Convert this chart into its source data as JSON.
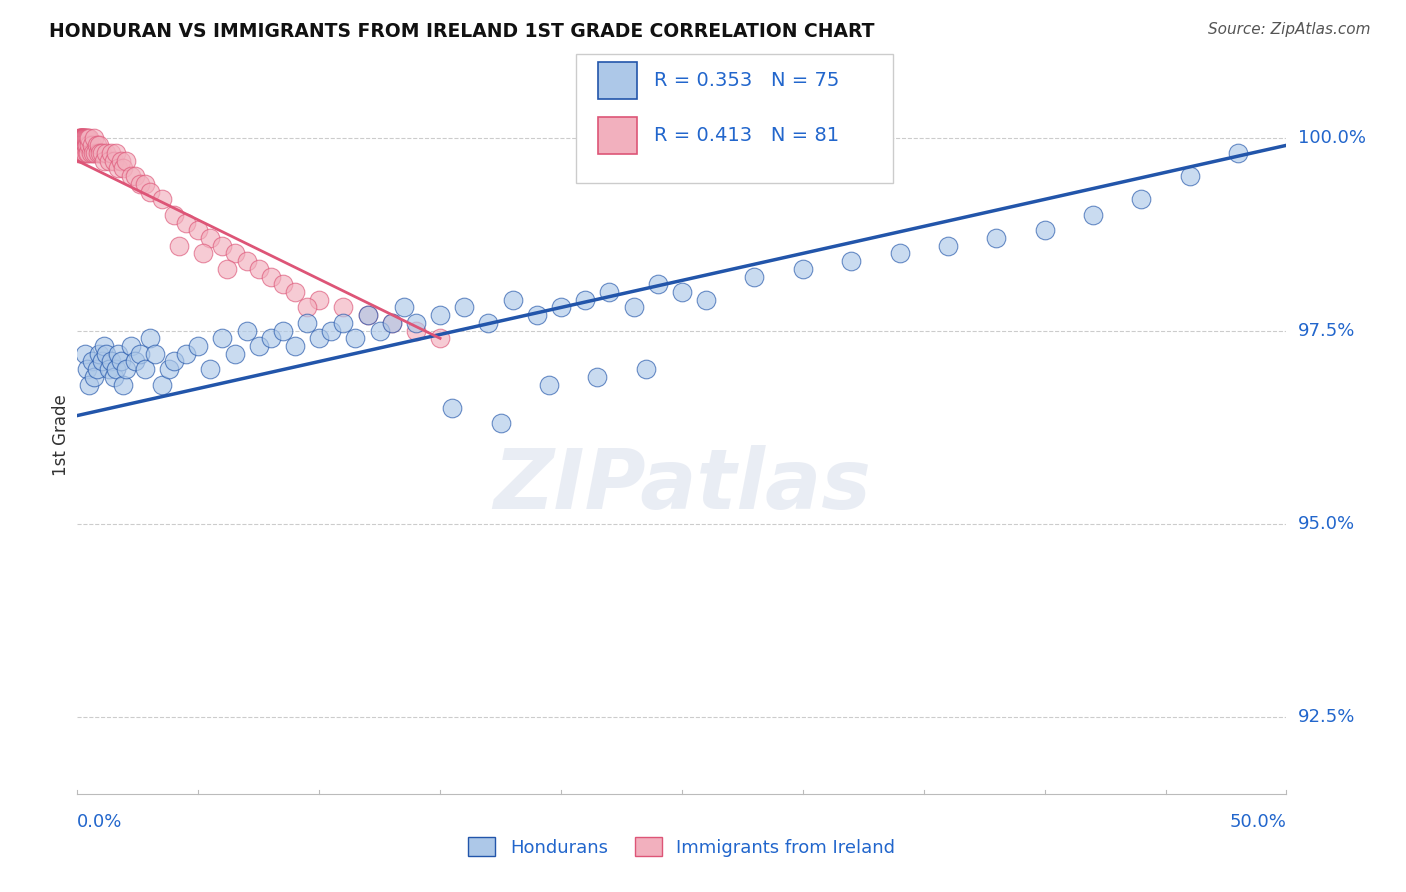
{
  "title": "HONDURAN VS IMMIGRANTS FROM IRELAND 1ST GRADE CORRELATION CHART",
  "source": "Source: ZipAtlas.com",
  "ylabel": "1st Grade",
  "yticks": [
    92.5,
    95.0,
    97.5,
    100.0
  ],
  "ytick_labels": [
    "92.5%",
    "95.0%",
    "97.5%",
    "100.0%"
  ],
  "xmin": 0.0,
  "xmax": 50.0,
  "ymin": 91.5,
  "ymax": 100.8,
  "blue_R": 0.353,
  "blue_N": 75,
  "pink_R": 0.413,
  "pink_N": 81,
  "blue_color": "#adc8e8",
  "pink_color": "#f2b0be",
  "blue_line_color": "#2255aa",
  "pink_line_color": "#dd5577",
  "legend_blue_label": "Hondurans",
  "legend_pink_label": "Immigrants from Ireland",
  "watermark": "ZIPatlas",
  "blue_x": [
    0.3,
    0.4,
    0.5,
    0.6,
    0.7,
    0.8,
    0.9,
    1.0,
    1.1,
    1.2,
    1.3,
    1.4,
    1.5,
    1.6,
    1.7,
    1.8,
    1.9,
    2.0,
    2.2,
    2.4,
    2.6,
    2.8,
    3.0,
    3.2,
    3.5,
    3.8,
    4.0,
    4.5,
    5.0,
    5.5,
    6.0,
    6.5,
    7.0,
    7.5,
    8.0,
    8.5,
    9.0,
    9.5,
    10.0,
    10.5,
    11.0,
    11.5,
    12.0,
    12.5,
    13.0,
    13.5,
    14.0,
    15.0,
    16.0,
    17.0,
    18.0,
    19.0,
    20.0,
    21.0,
    22.0,
    23.0,
    24.0,
    25.0,
    26.0,
    28.0,
    30.0,
    32.0,
    34.0,
    36.0,
    38.0,
    40.0,
    42.0,
    44.0,
    46.0,
    48.0,
    15.5,
    17.5,
    19.5,
    21.5,
    23.5
  ],
  "blue_y": [
    97.2,
    97.0,
    96.8,
    97.1,
    96.9,
    97.0,
    97.2,
    97.1,
    97.3,
    97.2,
    97.0,
    97.1,
    96.9,
    97.0,
    97.2,
    97.1,
    96.8,
    97.0,
    97.3,
    97.1,
    97.2,
    97.0,
    97.4,
    97.2,
    96.8,
    97.0,
    97.1,
    97.2,
    97.3,
    97.0,
    97.4,
    97.2,
    97.5,
    97.3,
    97.4,
    97.5,
    97.3,
    97.6,
    97.4,
    97.5,
    97.6,
    97.4,
    97.7,
    97.5,
    97.6,
    97.8,
    97.6,
    97.7,
    97.8,
    97.6,
    97.9,
    97.7,
    97.8,
    97.9,
    98.0,
    97.8,
    98.1,
    98.0,
    97.9,
    98.2,
    98.3,
    98.4,
    98.5,
    98.6,
    98.7,
    98.8,
    99.0,
    99.2,
    99.5,
    99.8,
    96.5,
    96.3,
    96.8,
    96.9,
    97.0
  ],
  "pink_x": [
    0.05,
    0.07,
    0.08,
    0.1,
    0.11,
    0.12,
    0.13,
    0.14,
    0.15,
    0.16,
    0.17,
    0.18,
    0.19,
    0.2,
    0.21,
    0.22,
    0.23,
    0.24,
    0.25,
    0.26,
    0.27,
    0.28,
    0.29,
    0.3,
    0.32,
    0.34,
    0.36,
    0.38,
    0.4,
    0.42,
    0.44,
    0.46,
    0.48,
    0.5,
    0.55,
    0.6,
    0.65,
    0.7,
    0.75,
    0.8,
    0.85,
    0.9,
    0.95,
    1.0,
    1.1,
    1.2,
    1.3,
    1.4,
    1.5,
    1.6,
    1.7,
    1.8,
    1.9,
    2.0,
    2.2,
    2.4,
    2.6,
    2.8,
    3.0,
    3.5,
    4.0,
    4.5,
    5.0,
    5.5,
    6.0,
    6.5,
    7.0,
    7.5,
    8.0,
    8.5,
    9.0,
    10.0,
    11.0,
    12.0,
    13.0,
    14.0,
    15.0,
    4.2,
    5.2,
    6.2,
    9.5
  ],
  "pink_y": [
    99.8,
    100.0,
    99.9,
    100.0,
    99.8,
    100.0,
    99.9,
    100.0,
    100.0,
    99.9,
    100.0,
    100.0,
    99.8,
    100.0,
    99.9,
    100.0,
    99.8,
    99.9,
    100.0,
    100.0,
    99.9,
    100.0,
    100.0,
    99.8,
    100.0,
    99.9,
    100.0,
    100.0,
    99.8,
    99.9,
    100.0,
    99.8,
    99.9,
    100.0,
    99.8,
    99.9,
    99.8,
    100.0,
    99.8,
    99.9,
    99.8,
    99.9,
    99.8,
    99.8,
    99.7,
    99.8,
    99.7,
    99.8,
    99.7,
    99.8,
    99.6,
    99.7,
    99.6,
    99.7,
    99.5,
    99.5,
    99.4,
    99.4,
    99.3,
    99.2,
    99.0,
    98.9,
    98.8,
    98.7,
    98.6,
    98.5,
    98.4,
    98.3,
    98.2,
    98.1,
    98.0,
    97.9,
    97.8,
    97.7,
    97.6,
    97.5,
    97.4,
    98.6,
    98.5,
    98.3,
    97.8
  ],
  "blue_line_x": [
    0.0,
    50.0
  ],
  "blue_line_y": [
    96.4,
    99.9
  ],
  "pink_line_x": [
    0.0,
    15.0
  ],
  "pink_line_y": [
    99.7,
    97.4
  ]
}
